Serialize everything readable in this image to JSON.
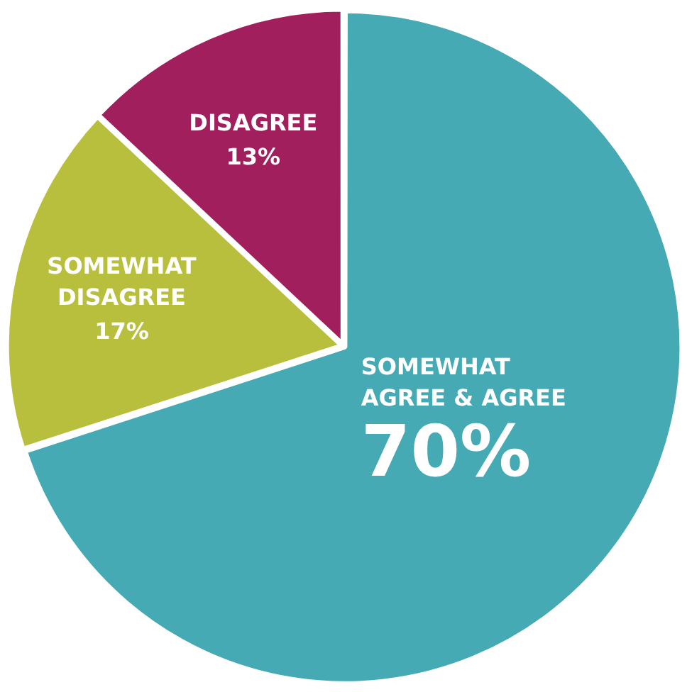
{
  "chart_data": {
    "type": "pie",
    "categories": [
      "SOMEWHAT AGREE & AGREE",
      "SOMEWHAT DISAGREE",
      "DISAGREE"
    ],
    "values": [
      70,
      17,
      13
    ],
    "colors": [
      "#45aab3",
      "#b8bf3c",
      "#a01f5c"
    ],
    "value_labels": [
      "70%",
      "17%",
      "13%"
    ],
    "legend": false
  }
}
